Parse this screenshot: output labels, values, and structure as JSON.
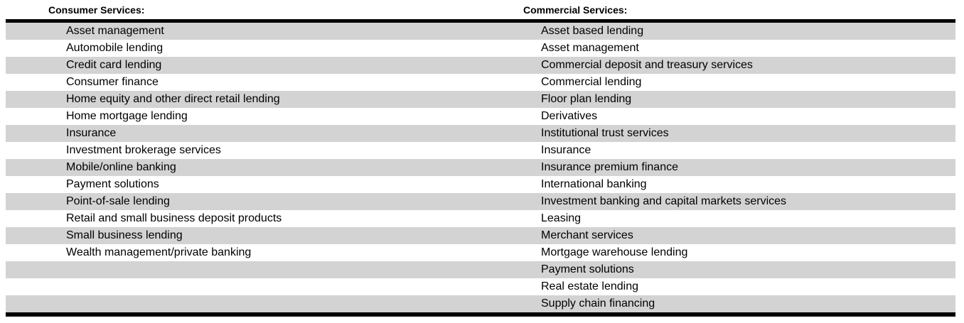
{
  "table": {
    "columns": [
      {
        "header": "Consumer Services:",
        "items": [
          "Asset management",
          "Automobile lending",
          "Credit card lending",
          "Consumer finance",
          "Home equity and other direct retail lending",
          "Home mortgage lending",
          "Insurance",
          "Investment brokerage services",
          "Mobile/online banking",
          "Payment solutions",
          "Point-of-sale lending",
          "Retail and small business deposit products",
          "Small business lending",
          "Wealth management/private banking"
        ]
      },
      {
        "header": "Commercial Services:",
        "items": [
          "Asset based lending",
          "Asset management",
          "Commercial deposit and treasury services",
          "Commercial lending",
          "Floor plan lending",
          "Derivatives",
          "Institutional trust services",
          "Insurance",
          "Insurance premium finance",
          "International banking",
          "Investment banking and capital markets services",
          "Leasing",
          "Merchant services",
          "Mortgage warehouse lending",
          "Payment solutions",
          "Real estate lending",
          "Supply chain financing"
        ]
      }
    ],
    "row_count": 17,
    "colors": {
      "stripe": "#d3d3d3",
      "rule": "#000000",
      "text": "#000000",
      "background": "#ffffff"
    }
  }
}
